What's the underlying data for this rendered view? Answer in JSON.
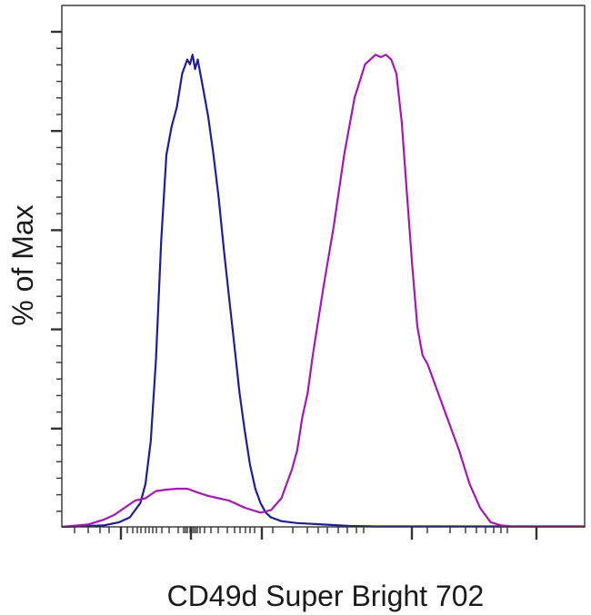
{
  "chart_data": {
    "type": "line",
    "title": "",
    "xlabel": "CD49d Super Bright 702",
    "ylabel": "% of Max",
    "xlim": [
      0,
      100
    ],
    "ylim": [
      0,
      100
    ],
    "grid": false,
    "legend": "none",
    "series": [
      {
        "color": "#1f1f8f",
        "x": [
          0,
          8,
          11,
          13,
          15,
          16,
          17,
          18,
          19,
          20,
          21,
          22,
          23,
          24,
          24.5,
          25,
          25.5,
          26,
          26.5,
          27,
          28,
          29,
          30,
          31,
          32,
          33,
          34,
          35,
          36,
          37,
          38,
          39,
          40,
          42,
          45,
          50,
          55,
          60,
          100
        ],
        "y": [
          0,
          0.3,
          1,
          2,
          5,
          9,
          18,
          35,
          60,
          78,
          84,
          88,
          95,
          98,
          97,
          99,
          96,
          98,
          95,
          92,
          86,
          78,
          69,
          58,
          48,
          38,
          28,
          20,
          13,
          8,
          5,
          3,
          2,
          1.2,
          0.8,
          0.5,
          0.2,
          0.1,
          0.1
        ]
      },
      {
        "color": "#a01ab0",
        "x": [
          0,
          5,
          8,
          10,
          12,
          14,
          16,
          18,
          20,
          22,
          24,
          26,
          28,
          30,
          32,
          35,
          38,
          40,
          42,
          44,
          45,
          46,
          47,
          48,
          50,
          52,
          54,
          56,
          58,
          60,
          61,
          62,
          63,
          64,
          65,
          66,
          67,
          68,
          69,
          70,
          72,
          74,
          76,
          78,
          80,
          82,
          84,
          86,
          100
        ],
        "y": [
          0,
          0.5,
          1.5,
          2.5,
          4,
          5.5,
          6,
          7.5,
          7.8,
          8,
          8,
          7.2,
          6.5,
          6,
          5.5,
          4,
          3,
          3.5,
          6,
          12,
          16,
          23,
          28,
          36,
          50,
          63,
          78,
          90,
          97,
          99,
          98.5,
          99,
          98,
          95,
          85,
          70,
          55,
          42,
          36,
          34,
          28,
          22,
          16,
          9,
          4,
          1,
          0.3,
          0.1,
          0.1
        ]
      }
    ]
  }
}
